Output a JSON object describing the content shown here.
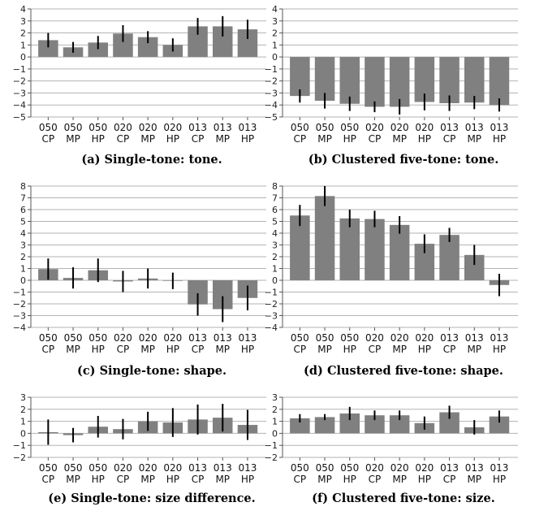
{
  "chart_data": [
    {
      "type": "bar",
      "caption": "(a) Single-tone: tone.",
      "categories": [
        "050\nCP",
        "050\nMP",
        "050\nHP",
        "020\nCP",
        "020\nMP",
        "020\nHP",
        "013\nCP",
        "013\nMP",
        "013\nHP"
      ],
      "values": [
        1.4,
        0.8,
        1.2,
        1.95,
        1.65,
        1.0,
        2.55,
        2.55,
        2.3
      ],
      "errors": [
        0.6,
        0.45,
        0.55,
        0.7,
        0.5,
        0.55,
        0.7,
        0.85,
        0.8
      ],
      "ylim": [
        -5,
        4
      ],
      "yticks": [
        -5,
        -4,
        -3,
        -2,
        -1,
        0,
        1,
        2,
        3,
        4
      ]
    },
    {
      "type": "bar",
      "caption": "(b) Clustered five-tone: tone.",
      "categories": [
        "050\nCP",
        "050\nMP",
        "050\nHP",
        "020\nCP",
        "020\nMP",
        "020\nHP",
        "013\nCP",
        "013\nMP",
        "013\nHP"
      ],
      "values": [
        -3.25,
        -3.65,
        -3.9,
        -4.15,
        -4.15,
        -3.75,
        -3.85,
        -3.8,
        -4.0
      ],
      "errors": [
        0.55,
        0.65,
        0.6,
        0.45,
        0.65,
        0.7,
        0.65,
        0.55,
        0.55
      ],
      "ylim": [
        -5,
        4
      ],
      "yticks": [
        -5,
        -4,
        -3,
        -2,
        -1,
        0,
        1,
        2,
        3,
        4
      ]
    },
    {
      "type": "bar",
      "caption": "(c) Single-tone: shape.",
      "categories": [
        "050\nCP",
        "050\nMP",
        "050\nHP",
        "020\nCP",
        "020\nMP",
        "020\nHP",
        "013\nCP",
        "013\nMP",
        "013\nHP"
      ],
      "values": [
        0.95,
        0.2,
        0.85,
        -0.1,
        0.15,
        -0.05,
        -2.05,
        -2.45,
        -1.5
      ],
      "errors": [
        0.9,
        0.9,
        1.0,
        0.9,
        0.85,
        0.7,
        0.95,
        1.1,
        1.05
      ],
      "ylim": [
        -4,
        8
      ],
      "yticks": [
        -4,
        -3,
        -2,
        -1,
        0,
        1,
        2,
        3,
        4,
        5,
        6,
        7,
        8
      ]
    },
    {
      "type": "bar",
      "caption": "(d) Clustered five-tone: shape.",
      "categories": [
        "050\nCP",
        "050\nMP",
        "050\nHP",
        "020\nCP",
        "020\nMP",
        "020\nHP",
        "013\nCP",
        "013\nMP",
        "013\nHP"
      ],
      "values": [
        5.5,
        7.15,
        5.25,
        5.2,
        4.7,
        3.1,
        3.85,
        2.15,
        -0.4
      ],
      "errors": [
        0.9,
        0.85,
        0.75,
        0.7,
        0.75,
        0.8,
        0.6,
        0.85,
        0.95
      ],
      "ylim": [
        -4,
        8
      ],
      "yticks": [
        -4,
        -3,
        -2,
        -1,
        0,
        1,
        2,
        3,
        4,
        5,
        6,
        7,
        8
      ]
    },
    {
      "type": "bar",
      "caption": "(e) Single-tone: size difference.",
      "categories": [
        "050\nCP",
        "050\nMP",
        "050\nHP",
        "020\nCP",
        "020\nMP",
        "020\nHP",
        "013\nCP",
        "013\nMP",
        "013\nHP"
      ],
      "values": [
        0.1,
        -0.15,
        0.55,
        0.35,
        1.0,
        0.9,
        1.15,
        1.3,
        0.7
      ],
      "errors": [
        1.05,
        0.6,
        0.9,
        0.85,
        0.8,
        1.2,
        1.25,
        1.15,
        1.25
      ],
      "ylim": [
        -2,
        3
      ],
      "yticks": [
        -2,
        -1,
        0,
        1,
        2,
        3
      ]
    },
    {
      "type": "bar",
      "caption": "(f) Clustered five-tone: size.",
      "categories": [
        "050\nCP",
        "050\nMP",
        "050\nHP",
        "020\nCP",
        "020\nMP",
        "020\nHP",
        "013\nCP",
        "013\nMP",
        "013\nHP"
      ],
      "values": [
        1.25,
        1.35,
        1.65,
        1.5,
        1.5,
        0.85,
        1.75,
        0.5,
        1.4
      ],
      "errors": [
        0.35,
        0.25,
        0.55,
        0.4,
        0.4,
        0.55,
        0.55,
        0.6,
        0.5
      ],
      "ylim": [
        -2,
        3
      ],
      "yticks": [
        -2,
        -1,
        0,
        1,
        2,
        3
      ]
    }
  ],
  "colors": {
    "bar": "#808080",
    "error_bar": "#000000",
    "grid": "#b3b3b3",
    "text": "#111111"
  }
}
